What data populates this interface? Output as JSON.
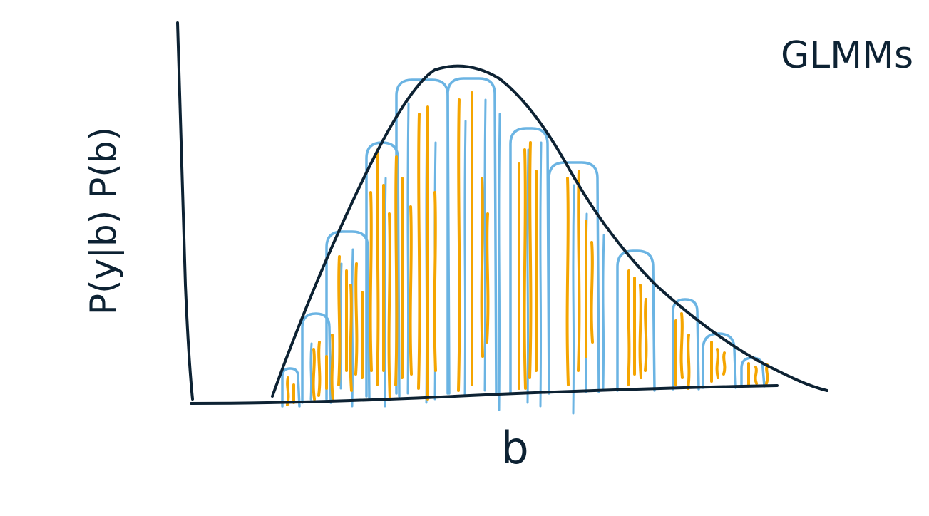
{
  "corner_label": "GLMMs",
  "y_axis_label": "P(y|b) P(b)",
  "x_axis_label": "b",
  "colors": {
    "ink": "#0d2233",
    "blue": "#6bb4e3",
    "orange": "#f5a500",
    "background": "#ffffff"
  }
}
